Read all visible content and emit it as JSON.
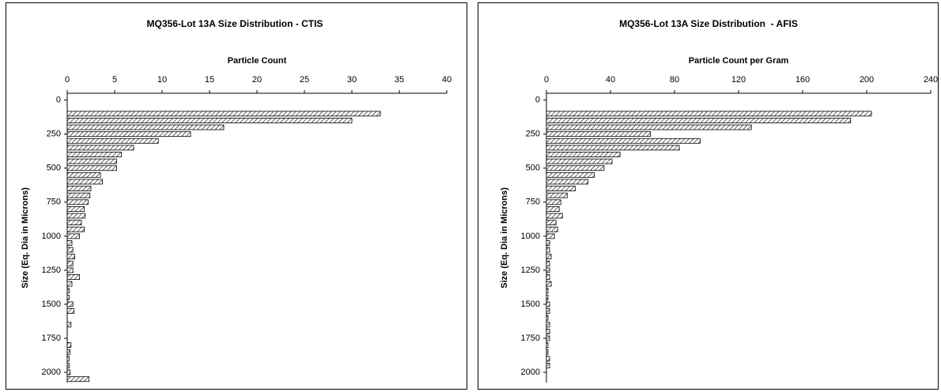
{
  "chart_data": [
    {
      "type": "bar",
      "orientation": "horizontal",
      "title": "MQ356-Lot 13A Size Distribution - CTIS",
      "value_axis_title": "Particle Count",
      "size_axis_title": "Size (Eq. Dia in Microns)",
      "x": [
        100,
        150,
        200,
        250,
        300,
        350,
        400,
        450,
        500,
        550,
        600,
        650,
        700,
        750,
        800,
        850,
        900,
        950,
        1000,
        1050,
        1100,
        1150,
        1200,
        1250,
        1300,
        1350,
        1400,
        1450,
        1500,
        1550,
        1600,
        1650,
        1700,
        1750,
        1800,
        1850,
        1900,
        1950,
        2000,
        2050
      ],
      "values": [
        33,
        30,
        16.5,
        13,
        9.6,
        7,
        5.7,
        5.2,
        5.2,
        3.5,
        3.7,
        2.5,
        2.4,
        2.2,
        1.8,
        1.9,
        1.5,
        1.8,
        1.3,
        0.5,
        0.6,
        0.8,
        0.6,
        0.6,
        1.3,
        0.5,
        0.2,
        0.2,
        0.6,
        0.7,
        0,
        0.4,
        0,
        0,
        0.4,
        0.3,
        0.2,
        0.2,
        0.3,
        2.3
      ],
      "xlim": [
        -50,
        2075
      ],
      "xticks": [
        0,
        250,
        500,
        750,
        1000,
        1250,
        1500,
        1750,
        2000
      ],
      "ylim": [
        0,
        40
      ],
      "yticks": [
        0,
        5,
        10,
        15,
        20,
        25,
        30,
        35,
        40
      ],
      "color": "#000000"
    },
    {
      "type": "bar",
      "orientation": "horizontal",
      "title": "MQ356-Lot 13A Size Distribution  - AFIS",
      "value_axis_title": "Particle Count per Gram",
      "size_axis_title": "Size (Eq. Dia in Microns)",
      "x": [
        100,
        150,
        200,
        250,
        300,
        350,
        400,
        450,
        500,
        550,
        600,
        650,
        700,
        750,
        800,
        850,
        900,
        950,
        1000,
        1050,
        1100,
        1150,
        1200,
        1250,
        1300,
        1350,
        1400,
        1450,
        1500,
        1550,
        1600,
        1650,
        1700,
        1750,
        1800,
        1850,
        1900,
        1950,
        2000,
        2050
      ],
      "values": [
        203,
        190,
        128,
        65,
        96,
        83,
        46,
        41,
        36,
        30,
        26,
        18,
        13,
        9,
        8,
        10,
        6,
        7,
        5,
        2,
        2,
        3,
        2,
        2,
        2,
        3,
        1,
        1,
        2,
        2,
        1,
        2,
        2,
        2,
        1,
        1,
        2,
        2,
        0,
        0
      ],
      "xlim": [
        -50,
        2075
      ],
      "xticks": [
        0,
        250,
        500,
        750,
        1000,
        1250,
        1500,
        1750,
        2000
      ],
      "ylim": [
        0,
        240
      ],
      "yticks": [
        0,
        40,
        80,
        120,
        160,
        200,
        240
      ],
      "color": "#000000"
    }
  ]
}
